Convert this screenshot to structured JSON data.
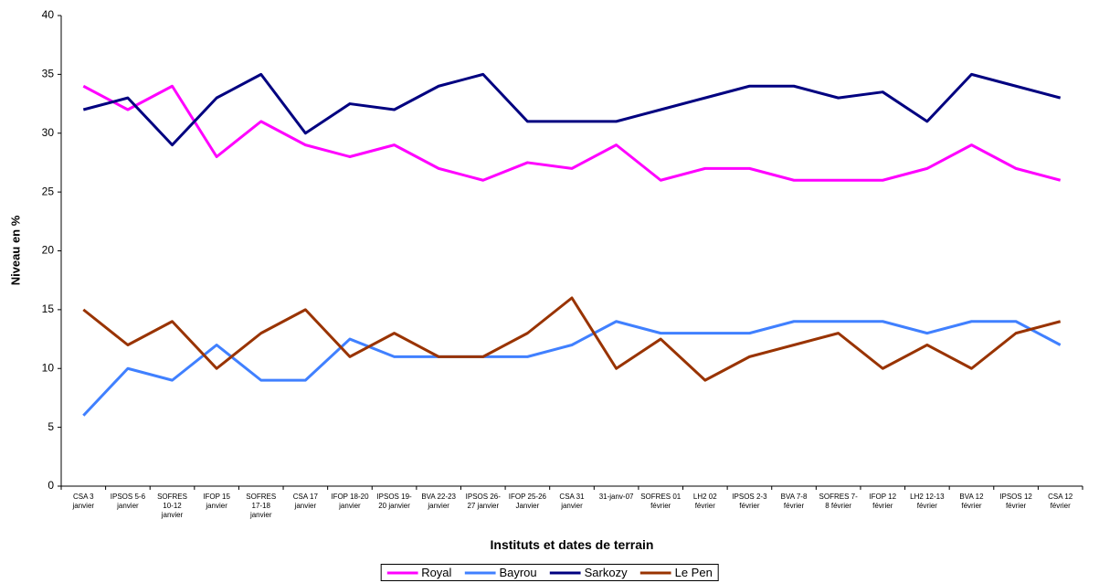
{
  "chart_data": {
    "type": "line",
    "x_label": "Instituts et dates de terrain",
    "y_label": "Niveau en %",
    "categories": [
      "CSA 3 janvier",
      "IPSOS 5-6 janvier",
      "SOFRES 10-12 janvier",
      "IFOP 15 janvier",
      "SOFRES 17-18 janvier",
      "CSA 17 janvier",
      "IFOP 18-20 janvier",
      "IPSOS 19-20 janvier",
      "BVA 22-23 janvier",
      "IPSOS 26-27 janvier",
      "IFOP 25-26 Janvier",
      "CSA 31 janvier",
      "31-janv-07",
      "SOFRES 01 février",
      "LH2 02 février",
      "IPSOS 2-3 février",
      "BVA 7-8 février",
      "SOFRES 7-8 février",
      "IFOP 12 février",
      "LH2 12-13 février",
      "BVA 12 février",
      "IPSOS 12 février",
      "CSA 12 février"
    ],
    "series": [
      {
        "name": "Royal",
        "color": "#ff00ff",
        "values": [
          34,
          32,
          34,
          28,
          31,
          29,
          28,
          29,
          27,
          26,
          27.5,
          27,
          29,
          26,
          27,
          27,
          26,
          26,
          26,
          27,
          29,
          27,
          26
        ]
      },
      {
        "name": "Bayrou",
        "color": "#4080ff",
        "values": [
          6,
          10,
          9,
          12,
          9,
          9,
          12.5,
          11,
          11,
          11,
          11,
          12,
          14,
          13,
          13,
          13,
          14,
          14,
          14,
          13,
          14,
          14,
          12
        ]
      },
      {
        "name": "Sarkozy",
        "color": "#000080",
        "values": [
          32,
          33,
          29,
          33,
          35,
          30,
          32.5,
          32,
          34,
          35,
          31,
          31,
          31,
          32,
          33,
          34,
          34,
          33,
          33.5,
          31,
          35,
          34,
          33
        ]
      },
      {
        "name": "Le Pen",
        "color": "#993300",
        "values": [
          15,
          12,
          14,
          10,
          13,
          15,
          11,
          13,
          11,
          11,
          13,
          16,
          10,
          12.5,
          9,
          11,
          12,
          13,
          10,
          12,
          10,
          13,
          14
        ]
      }
    ],
    "ylim": [
      0,
      40
    ],
    "yticks": [
      0,
      5,
      10,
      15,
      20,
      25,
      30,
      35,
      40
    ],
    "grid": false
  }
}
